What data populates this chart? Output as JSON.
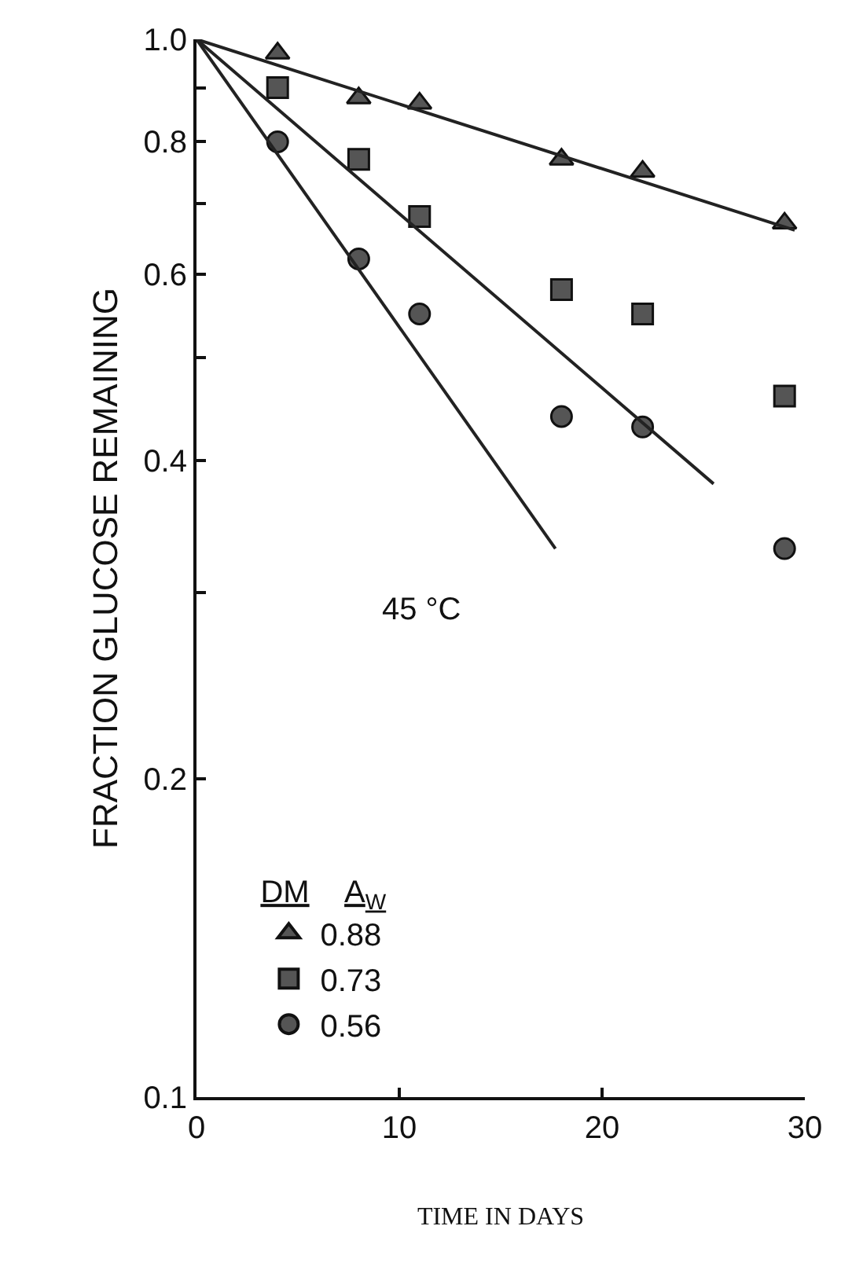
{
  "chart_data": {
    "type": "scatter",
    "xlabel": "TIME IN DAYS",
    "ylabel": "FRACTION GLUCOSE REMAINING",
    "legend_title": "DM   A$_{W}$",
    "annotations": [
      "45 °C"
    ],
    "xlim": [
      0,
      30
    ],
    "xticks": [
      0,
      10,
      20,
      30
    ],
    "ylim": [
      0.1,
      1.0
    ],
    "yticks": [
      0.1,
      0.2,
      {
        "value": 0.3,
        "label": null
      },
      0.4,
      {
        "value": 0.5,
        "label": null
      },
      0.6,
      {
        "value": 0.7,
        "label": null
      },
      0.8,
      {
        "value": 0.9,
        "label": null
      },
      {
        "value": 1,
        "label": "1.0"
      }
    ],
    "log": "y",
    "legend": "bottom left",
    "series": [
      {
        "name": "0.88",
        "marker": "triangle",
        "color": "#555555",
        "x": [
          4,
          8,
          11,
          18,
          22,
          29
        ],
        "values": [
          0.97,
          0.88,
          0.87,
          0.77,
          0.75,
          0.67
        ]
      },
      {
        "name": "0.73",
        "marker": "square",
        "color": "#555555",
        "x": [
          4,
          8,
          11,
          18,
          22,
          29
        ],
        "values": [
          0.9,
          0.77,
          0.68,
          0.58,
          0.55,
          0.46
        ]
      },
      {
        "name": "0.56",
        "marker": "circle",
        "color": "#555555",
        "x": [
          4,
          8,
          11,
          18,
          22,
          29
        ],
        "values": [
          0.8,
          0.62,
          0.55,
          0.44,
          0.43,
          0.33
        ]
      },
      {
        "type": "line",
        "color": "#222222",
        "x": [
          0,
          29.5
        ],
        "values": [
          1.0,
          0.66
        ]
      },
      {
        "type": "line",
        "color": "#222222",
        "x": [
          0,
          25.5
        ],
        "values": [
          1.0,
          0.38
        ]
      },
      {
        "type": "line",
        "color": "#222222",
        "x": [
          0,
          17.7
        ],
        "values": [
          1.0,
          0.33
        ]
      }
    ]
  }
}
